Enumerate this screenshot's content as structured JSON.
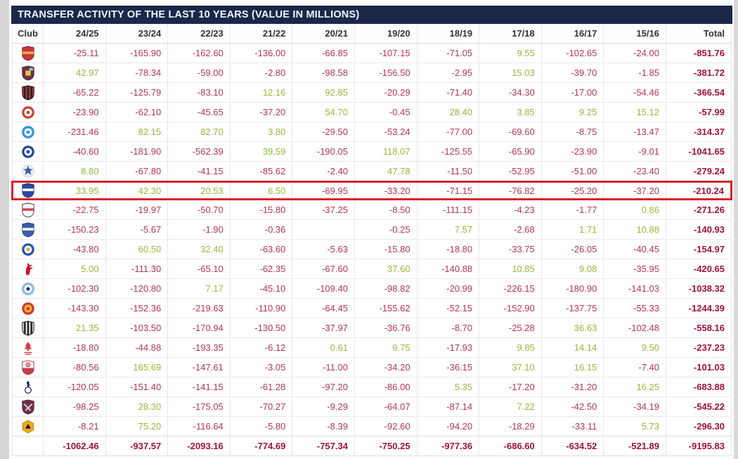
{
  "title": "TRANSFER ACTIVITY OF THE LAST 10 YEARS (VALUE IN MILLIONS)",
  "columns": [
    "Club",
    "24/25",
    "23/24",
    "22/23",
    "21/22",
    "20/21",
    "19/20",
    "18/19",
    "17/18",
    "16/17",
    "15/16",
    "Total"
  ],
  "colors": {
    "header_bg": "#1b2749",
    "negative_value": "#b43755",
    "positive_value": "#96b93c",
    "total_value": "#a0113c",
    "highlight_border": "#d9232b"
  },
  "rows": [
    {
      "club": "arsenal",
      "values": [
        "-25.11",
        "-165.90",
        "-162.60",
        "-136.00",
        "-66.85",
        "-107.15",
        "-71.05",
        "9.55",
        "-102.65",
        "-24.00"
      ],
      "total": "-851.76",
      "highlighted": false
    },
    {
      "club": "aston-villa",
      "values": [
        "42.97",
        "-78.34",
        "-59.00",
        "-2.80",
        "-98.58",
        "-156.50",
        "-2.95",
        "15.03",
        "-39.70",
        "-1.85"
      ],
      "total": "-381.72",
      "highlighted": false
    },
    {
      "club": "bournemouth",
      "values": [
        "-65.22",
        "-125.79",
        "-83.10",
        "12.16",
        "92.85",
        "-20.29",
        "-71.40",
        "-34.30",
        "-17.00",
        "-54.46"
      ],
      "total": "-366.54",
      "highlighted": false
    },
    {
      "club": "brentford",
      "values": [
        "-23.90",
        "-62.10",
        "-45.65",
        "-37.20",
        "54.70",
        "-0.45",
        "28.40",
        "3.85",
        "9.25",
        "15.12"
      ],
      "total": "-57.99",
      "highlighted": false
    },
    {
      "club": "brighton",
      "values": [
        "-231.46",
        "82.15",
        "82.70",
        "3.80",
        "-29.50",
        "-53.24",
        "-77.00",
        "-69.60",
        "-8.75",
        "-13.47"
      ],
      "total": "-314.37",
      "highlighted": false
    },
    {
      "club": "chelsea",
      "values": [
        "-40.60",
        "-181.90",
        "-562.39",
        "39.59",
        "-190.05",
        "118.07",
        "-125.55",
        "-65.90",
        "-23.90",
        "-9.01"
      ],
      "total": "-1041.65",
      "highlighted": false
    },
    {
      "club": "crystal-palace",
      "values": [
        "8.80",
        "-67.80",
        "-41.15",
        "-85.62",
        "-2.40",
        "47.78",
        "-11.50",
        "-52.95",
        "-51.00",
        "-23.40"
      ],
      "total": "-279.24",
      "highlighted": false
    },
    {
      "club": "everton",
      "values": [
        "33.95",
        "42.30",
        "20.53",
        "6.50",
        "-69.95",
        "-33.20",
        "-71.15",
        "-76.82",
        "-25.20",
        "-37.20"
      ],
      "total": "-210.24",
      "highlighted": true
    },
    {
      "club": "fulham",
      "values": [
        "-22.75",
        "-19.97",
        "-50.70",
        "-15.80",
        "-37.25",
        "-8.50",
        "-111.15",
        "-4.23",
        "-1.77",
        "0.86"
      ],
      "total": "-271.26",
      "highlighted": false
    },
    {
      "club": "ipswich",
      "values": [
        "-150.23",
        "-5.67",
        "-1.90",
        "-0.36",
        "",
        "-0.25",
        "7.57",
        "-2.68",
        "1.71",
        "10.88"
      ],
      "total": "-140.93",
      "highlighted": false
    },
    {
      "club": "leicester",
      "values": [
        "-43.80",
        "60.50",
        "32.40",
        "-63.60",
        "-5.63",
        "-15.80",
        "-18.80",
        "-33.75",
        "-26.05",
        "-40.45"
      ],
      "total": "-154.97",
      "highlighted": false
    },
    {
      "club": "liverpool",
      "values": [
        "5.00",
        "-111.30",
        "-65.10",
        "-62.35",
        "-67.60",
        "37.60",
        "-140.88",
        "10.85",
        "9.08",
        "-35.95"
      ],
      "total": "-420.65",
      "highlighted": false
    },
    {
      "club": "man-city",
      "values": [
        "-102.30",
        "-120.80",
        "7.17",
        "-45.10",
        "-109.40",
        "-98.82",
        "-20.99",
        "-226.15",
        "-180.90",
        "-141.03"
      ],
      "total": "-1038.32",
      "highlighted": false
    },
    {
      "club": "man-united",
      "values": [
        "-143.30",
        "-152.36",
        "-219.63",
        "-110.90",
        "-64.45",
        "-155.62",
        "-52.15",
        "-152.90",
        "-137.75",
        "-55.33"
      ],
      "total": "-1244.39",
      "highlighted": false
    },
    {
      "club": "newcastle",
      "values": [
        "21.35",
        "-103.50",
        "-170.94",
        "-130.50",
        "-37.97",
        "-36.76",
        "-8.70",
        "-25.28",
        "36.63",
        "-102.48"
      ],
      "total": "-558.16",
      "highlighted": false
    },
    {
      "club": "nottingham-forest",
      "values": [
        "-18.80",
        "-44.88",
        "-193.35",
        "-6.12",
        "0.61",
        "9.75",
        "-17.93",
        "9.85",
        "14.14",
        "9.50"
      ],
      "total": "-237.23",
      "highlighted": false
    },
    {
      "club": "southampton",
      "values": [
        "-80.56",
        "165.69",
        "-147.61",
        "-3.05",
        "-11.00",
        "-34.20",
        "-36.15",
        "37.10",
        "16.15",
        "-7.40"
      ],
      "total": "-101.03",
      "highlighted": false
    },
    {
      "club": "tottenham",
      "values": [
        "-120.05",
        "-151.40",
        "-141.15",
        "-61.28",
        "-97.20",
        "-86.00",
        "5.35",
        "-17.20",
        "-31.20",
        "16.25"
      ],
      "total": "-683.88",
      "highlighted": false
    },
    {
      "club": "west-ham",
      "values": [
        "-98.25",
        "28.30",
        "-175.05",
        "-70.27",
        "-9.29",
        "-64.07",
        "-87.14",
        "7.22",
        "-42.50",
        "-34.19"
      ],
      "total": "-545.22",
      "highlighted": false
    },
    {
      "club": "wolves",
      "values": [
        "-8.21",
        "75.20",
        "-116.64",
        "-5.80",
        "-8.39",
        "-92.60",
        "-94.20",
        "-18.29",
        "-33.11",
        "5.73"
      ],
      "total": "-296.30",
      "highlighted": false
    }
  ],
  "totals": {
    "values": [
      "-1062.46",
      "-937.57",
      "-2093.16",
      "-774.69",
      "-757.34",
      "-750.25",
      "-977.36",
      "-686.60",
      "-634.52",
      "-521.89"
    ],
    "total": "-9195.83"
  }
}
